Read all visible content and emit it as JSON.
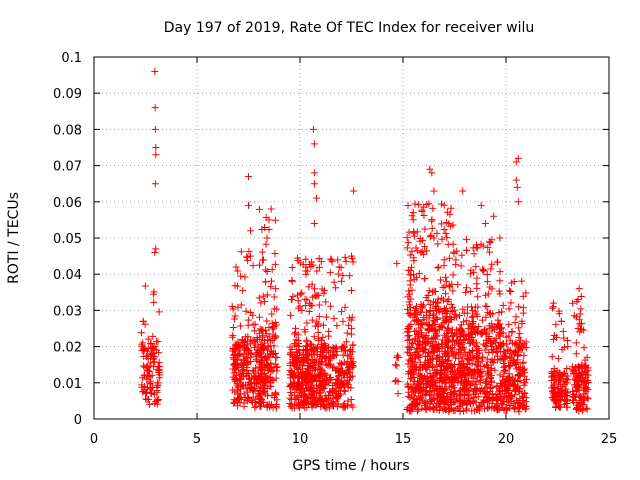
{
  "chart_data": {
    "type": "scatter",
    "title": "Day 197 of 2019, Rate Of TEC Index for receiver wilu",
    "xlabel": "GPS time / hours",
    "ylabel": "ROTI / TECUs",
    "xlim": [
      0,
      25
    ],
    "ylim": [
      0,
      0.1
    ],
    "xticks": [
      "0",
      "5",
      "10",
      "15",
      "20",
      "25"
    ],
    "yticks": [
      "0",
      "0.01",
      "0.02",
      "0.03",
      "0.04",
      "0.05",
      "0.06",
      "0.07",
      "0.08",
      "0.09",
      "0.1"
    ],
    "grid": true,
    "marker": "+",
    "color": "#ff0000",
    "clusters": [
      {
        "x": [
          2.3,
          3.2
        ],
        "base": [
          0.004,
          0.02
        ],
        "max": 0.038,
        "n": 110,
        "outliers": [
          [
            2.95,
            0.096
          ],
          [
            2.97,
            0.086
          ],
          [
            2.98,
            0.08
          ],
          [
            3.0,
            0.075
          ],
          [
            3.0,
            0.073
          ],
          [
            2.98,
            0.065
          ],
          [
            3.0,
            0.047
          ],
          [
            2.95,
            0.046
          ]
        ]
      },
      {
        "x": [
          6.7,
          8.2
        ],
        "base": [
          0.003,
          0.022
        ],
        "max": 0.048,
        "n": 260,
        "outliers": [
          [
            7.5,
            0.067
          ],
          [
            7.5,
            0.059
          ],
          [
            7.6,
            0.052
          ],
          [
            7.6,
            0.045
          ]
        ]
      },
      {
        "x": [
          8.0,
          8.9
        ],
        "base": [
          0.003,
          0.025
        ],
        "max": 0.058,
        "n": 170,
        "outliers": [
          [
            8.6,
            0.058
          ],
          [
            8.5,
            0.055
          ],
          [
            8.4,
            0.05
          ]
        ]
      },
      {
        "x": [
          9.5,
          11.2
        ],
        "base": [
          0.003,
          0.02
        ],
        "max": 0.045,
        "n": 420,
        "outliers": [
          [
            10.65,
            0.08
          ],
          [
            10.7,
            0.076
          ],
          [
            10.7,
            0.068
          ],
          [
            10.7,
            0.065
          ],
          [
            10.8,
            0.061
          ],
          [
            10.7,
            0.054
          ]
        ]
      },
      {
        "x": [
          11.2,
          12.6
        ],
        "base": [
          0.003,
          0.02
        ],
        "max": 0.045,
        "n": 220,
        "outliers": [
          [
            12.6,
            0.063
          ],
          [
            11.9,
            0.042
          ],
          [
            12.5,
            0.045
          ]
        ]
      },
      {
        "x": [
          14.6,
          14.8
        ],
        "base": [
          0.005,
          0.017
        ],
        "max": 0.018,
        "n": 8,
        "outliers": [
          [
            14.7,
            0.043
          ],
          [
            14.7,
            0.017
          ]
        ]
      },
      {
        "x": [
          15.2,
          17.5
        ],
        "base": [
          0.002,
          0.03
        ],
        "max": 0.06,
        "n": 700,
        "outliers": [
          [
            16.3,
            0.069
          ],
          [
            16.4,
            0.068
          ],
          [
            16.5,
            0.063
          ],
          [
            15.5,
            0.057
          ],
          [
            17.0,
            0.044
          ]
        ]
      },
      {
        "x": [
          17.5,
          19.8
        ],
        "base": [
          0.002,
          0.025
        ],
        "max": 0.05,
        "n": 500,
        "outliers": [
          [
            17.9,
            0.063
          ],
          [
            18.8,
            0.059
          ],
          [
            19.4,
            0.056
          ],
          [
            19.0,
            0.054
          ],
          [
            19.7,
            0.05
          ],
          [
            19.2,
            0.049
          ]
        ]
      },
      {
        "x": [
          19.8,
          21.0
        ],
        "base": [
          0.002,
          0.02
        ],
        "max": 0.04,
        "n": 220,
        "outliers": [
          [
            20.6,
            0.072
          ],
          [
            20.5,
            0.071
          ],
          [
            20.5,
            0.066
          ],
          [
            20.55,
            0.064
          ],
          [
            20.6,
            0.06
          ],
          [
            20.4,
            0.038
          ]
        ]
      },
      {
        "x": [
          22.2,
          23.0
        ],
        "base": [
          0.003,
          0.013
        ],
        "max": 0.032,
        "n": 120,
        "outliers": [
          [
            22.3,
            0.032
          ],
          [
            22.3,
            0.031
          ],
          [
            22.3,
            0.022
          ],
          [
            23.0,
            0.02
          ]
        ]
      },
      {
        "x": [
          23.2,
          24.0
        ],
        "base": [
          0.002,
          0.015
        ],
        "max": 0.036,
        "n": 130,
        "outliers": [
          [
            23.55,
            0.036
          ],
          [
            23.5,
            0.033
          ],
          [
            23.6,
            0.029
          ],
          [
            23.5,
            0.025
          ]
        ]
      }
    ]
  }
}
